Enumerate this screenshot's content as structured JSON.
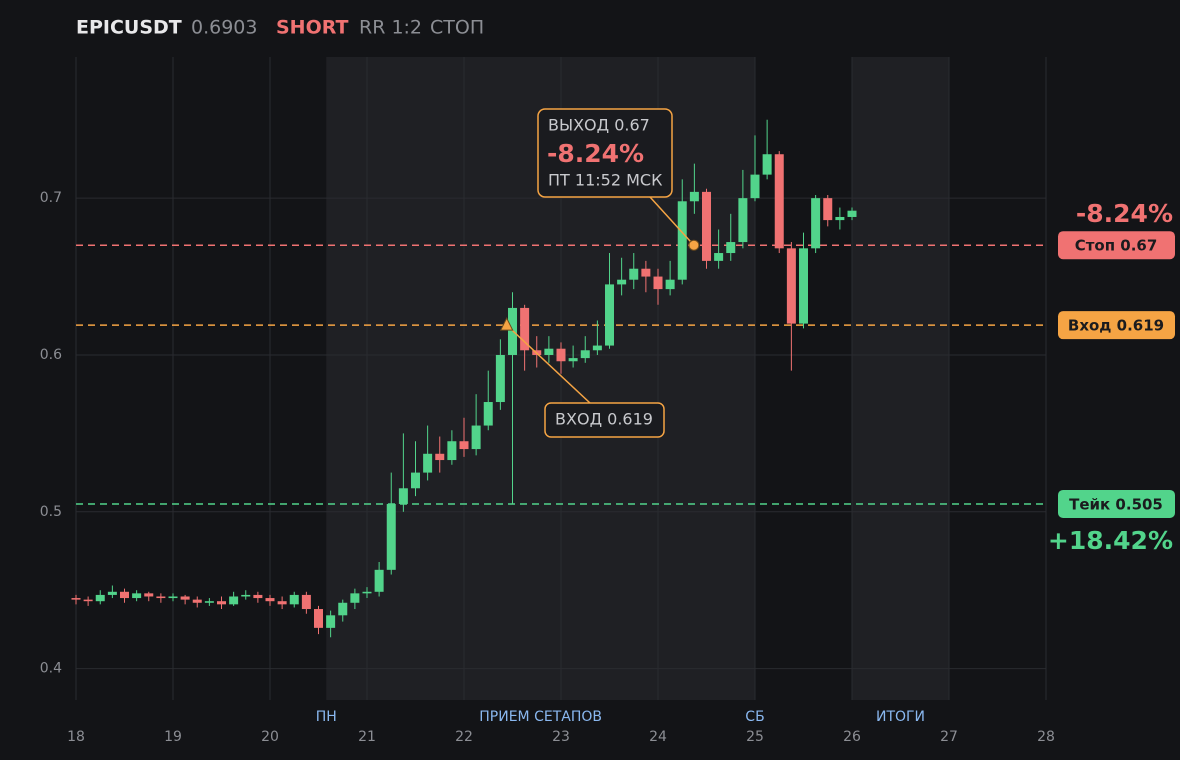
{
  "header": {
    "symbol": "EPICUSDT",
    "price": "0.6903",
    "side": "SHORT",
    "rr": "RR 1:2",
    "status": "СТОП"
  },
  "chart_data": {
    "type": "candlestick",
    "x": [
      18,
      18.125,
      18.25,
      18.375,
      18.5,
      18.625,
      18.75,
      18.875,
      19,
      19.125,
      19.25,
      19.375,
      19.5,
      19.625,
      19.75,
      19.875,
      20,
      20.125,
      20.25,
      20.375,
      20.5,
      20.625,
      20.75,
      20.875,
      21,
      21.125,
      21.25,
      21.375,
      21.5,
      21.625,
      21.75,
      21.875,
      22,
      22.125,
      22.25,
      22.375,
      22.5,
      22.625,
      22.75,
      22.875,
      23,
      23.125,
      23.25,
      23.375,
      23.5,
      23.625,
      23.75,
      23.875,
      24,
      24.125,
      24.25,
      24.375,
      24.5,
      24.625,
      24.75,
      24.875,
      25,
      25.125,
      25.25,
      25.375,
      25.5,
      25.625,
      25.75,
      25.875,
      26
    ],
    "open": [
      0.445,
      0.444,
      0.443,
      0.447,
      0.449,
      0.445,
      0.448,
      0.446,
      0.445,
      0.446,
      0.444,
      0.442,
      0.443,
      0.441,
      0.446,
      0.447,
      0.445,
      0.443,
      0.441,
      0.447,
      0.438,
      0.426,
      0.434,
      0.442,
      0.448,
      0.449,
      0.463,
      0.505,
      0.515,
      0.525,
      0.537,
      0.533,
      0.545,
      0.54,
      0.555,
      0.57,
      0.6,
      0.63,
      0.603,
      0.6,
      0.604,
      0.596,
      0.598,
      0.603,
      0.606,
      0.645,
      0.648,
      0.655,
      0.65,
      0.642,
      0.648,
      0.698,
      0.704,
      0.66,
      0.665,
      0.672,
      0.7,
      0.715,
      0.728,
      0.668,
      0.62,
      0.668,
      0.7,
      0.686,
      0.688
    ],
    "high": [
      0.447,
      0.446,
      0.45,
      0.453,
      0.451,
      0.45,
      0.449,
      0.448,
      0.448,
      0.447,
      0.446,
      0.445,
      0.446,
      0.449,
      0.45,
      0.449,
      0.447,
      0.446,
      0.449,
      0.449,
      0.44,
      0.437,
      0.444,
      0.451,
      0.452,
      0.468,
      0.525,
      0.55,
      0.545,
      0.555,
      0.548,
      0.552,
      0.56,
      0.575,
      0.59,
      0.61,
      0.64,
      0.632,
      0.612,
      0.612,
      0.608,
      0.606,
      0.612,
      0.622,
      0.665,
      0.662,
      0.665,
      0.66,
      0.655,
      0.66,
      0.712,
      0.722,
      0.706,
      0.68,
      0.69,
      0.718,
      0.74,
      0.75,
      0.73,
      0.672,
      0.678,
      0.702,
      0.702,
      0.694,
      0.694
    ],
    "low": [
      0.441,
      0.44,
      0.441,
      0.445,
      0.442,
      0.443,
      0.443,
      0.442,
      0.443,
      0.441,
      0.439,
      0.44,
      0.438,
      0.44,
      0.444,
      0.442,
      0.44,
      0.438,
      0.439,
      0.435,
      0.422,
      0.42,
      0.43,
      0.438,
      0.445,
      0.446,
      0.46,
      0.5,
      0.51,
      0.52,
      0.525,
      0.53,
      0.535,
      0.536,
      0.552,
      0.565,
      0.505,
      0.59,
      0.592,
      0.595,
      0.588,
      0.592,
      0.595,
      0.6,
      0.604,
      0.638,
      0.642,
      0.64,
      0.632,
      0.638,
      0.645,
      0.69,
      0.655,
      0.655,
      0.66,
      0.668,
      0.698,
      0.712,
      0.665,
      0.59,
      0.617,
      0.665,
      0.682,
      0.68,
      0.686
    ],
    "close": [
      0.444,
      0.443,
      0.447,
      0.449,
      0.445,
      0.448,
      0.446,
      0.445,
      0.446,
      0.444,
      0.442,
      0.443,
      0.441,
      0.446,
      0.447,
      0.445,
      0.443,
      0.441,
      0.447,
      0.438,
      0.426,
      0.434,
      0.442,
      0.448,
      0.449,
      0.463,
      0.505,
      0.515,
      0.525,
      0.537,
      0.533,
      0.545,
      0.54,
      0.555,
      0.57,
      0.6,
      0.63,
      0.603,
      0.6,
      0.604,
      0.596,
      0.598,
      0.603,
      0.606,
      0.645,
      0.648,
      0.655,
      0.65,
      0.642,
      0.648,
      0.698,
      0.704,
      0.66,
      0.665,
      0.672,
      0.7,
      0.715,
      0.728,
      0.668,
      0.62,
      0.668,
      0.7,
      0.686,
      0.688,
      0.692
    ],
    "colors": {
      "up": "#52d48b",
      "down": "#f07272"
    },
    "xlim": [
      18,
      28
    ],
    "xticks": [
      18,
      19,
      20,
      21,
      22,
      23,
      24,
      25,
      26,
      27,
      28
    ],
    "ylim": [
      0.38,
      0.79
    ],
    "yticks": [
      0.4,
      0.5,
      0.6,
      0.7
    ],
    "grid": true,
    "levels": [
      {
        "name": "Стоп 0.67",
        "value": 0.67,
        "color": "#f07272",
        "result": "-8.24%"
      },
      {
        "name": "Вход 0.619",
        "value": 0.619,
        "color": "#f5a444"
      },
      {
        "name": "Тейк 0.505",
        "value": 0.505,
        "color": "#52d48b",
        "result": "+18.42%"
      }
    ],
    "sessions": [
      {
        "label": "ПРИЕМ СЕТАПОВ",
        "range": [
          20.58,
          25
        ]
      },
      {
        "label": "ИТОГИ",
        "range": [
          26,
          27
        ]
      }
    ],
    "day_markers": [
      {
        "label": "ПН",
        "x": 20.58
      },
      {
        "label": "СБ",
        "x": 25
      }
    ],
    "entry_marker": {
      "x": 22.44,
      "y": 0.619,
      "lines": [
        "ВХОД 0.619"
      ]
    },
    "exit_marker": {
      "x": 24.37,
      "y": 0.67,
      "lines": [
        "ВЫХОД 0.67",
        "-8.24%",
        "ПТ 11:52 МСК"
      ]
    }
  }
}
